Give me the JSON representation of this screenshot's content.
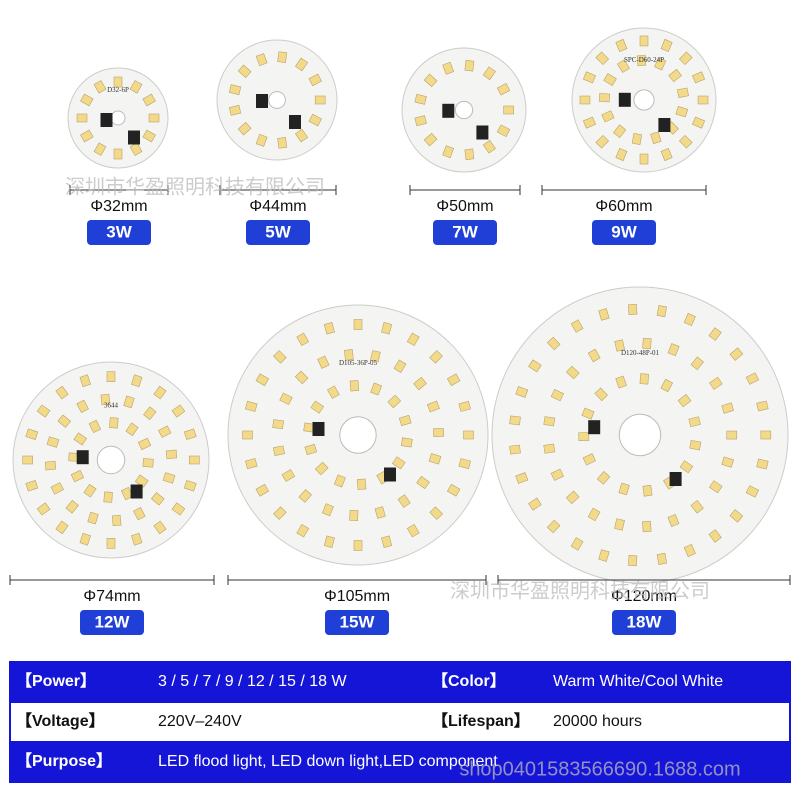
{
  "products": [
    {
      "diameter": "Φ32mm",
      "power": "3W",
      "board_label": "D32-6P"
    },
    {
      "diameter": "Φ44mm",
      "power": "5W"
    },
    {
      "diameter": "Φ50mm",
      "power": "7W"
    },
    {
      "diameter": "Φ60mm",
      "power": "9W",
      "board_label": "SPC-D60-24P"
    },
    {
      "diameter": "Φ74mm",
      "power": "12W",
      "board_label": "3644"
    },
    {
      "diameter": "Φ105mm",
      "power": "15W",
      "board_label": "D105-36P-05"
    },
    {
      "diameter": "Φ120mm",
      "power": "18W",
      "board_label": "D120-48P-01"
    }
  ],
  "watermarks": [
    "深圳市华盈照明科技有限公司",
    "深圳市华盈照明科技有限公司",
    "shop0401583566690.1688.com"
  ],
  "specs": {
    "rows": [
      [
        {
          "label": "【Power】",
          "value": "3 / 5 / 7 / 9 / 12 / 15 / 18 W"
        },
        {
          "label": "【Color】",
          "value": "Warm White/Cool White"
        }
      ],
      [
        {
          "label": "【Voltage】",
          "value": "220V–240V"
        },
        {
          "label": "【Lifespan】",
          "value": "20000 hours"
        }
      ],
      [
        {
          "label": "【Purpose】",
          "value": "LED flood light, LED down light,LED component"
        }
      ]
    ]
  }
}
